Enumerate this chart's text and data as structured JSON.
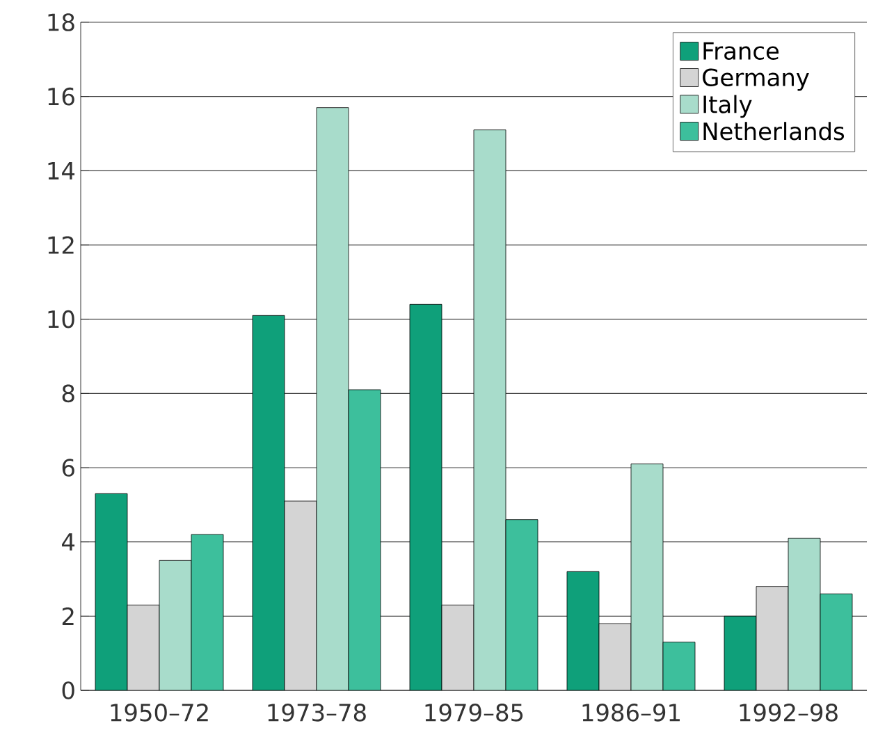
{
  "chart_data": {
    "type": "bar",
    "categories": [
      "1950–72",
      "1973–78",
      "1979–85",
      "1986–91",
      "1992–98"
    ],
    "series": [
      {
        "name": "France",
        "color": "#0fa07a",
        "values": [
          5.3,
          10.1,
          10.4,
          3.2,
          2.0
        ]
      },
      {
        "name": "Germany",
        "color": "#d4d4d4",
        "values": [
          2.3,
          5.1,
          2.3,
          1.8,
          2.8
        ]
      },
      {
        "name": "Italy",
        "color": "#a8dccb",
        "values": [
          3.5,
          15.7,
          15.1,
          6.1,
          4.1
        ]
      },
      {
        "name": "Netherlands",
        "color": "#3dbf9c",
        "values": [
          4.2,
          8.1,
          4.6,
          1.3,
          2.6
        ]
      }
    ],
    "ylim": [
      0,
      18
    ],
    "yticks": [
      0,
      2,
      4,
      6,
      8,
      10,
      12,
      14,
      16,
      18
    ],
    "grid": "y",
    "legend": "top right"
  }
}
